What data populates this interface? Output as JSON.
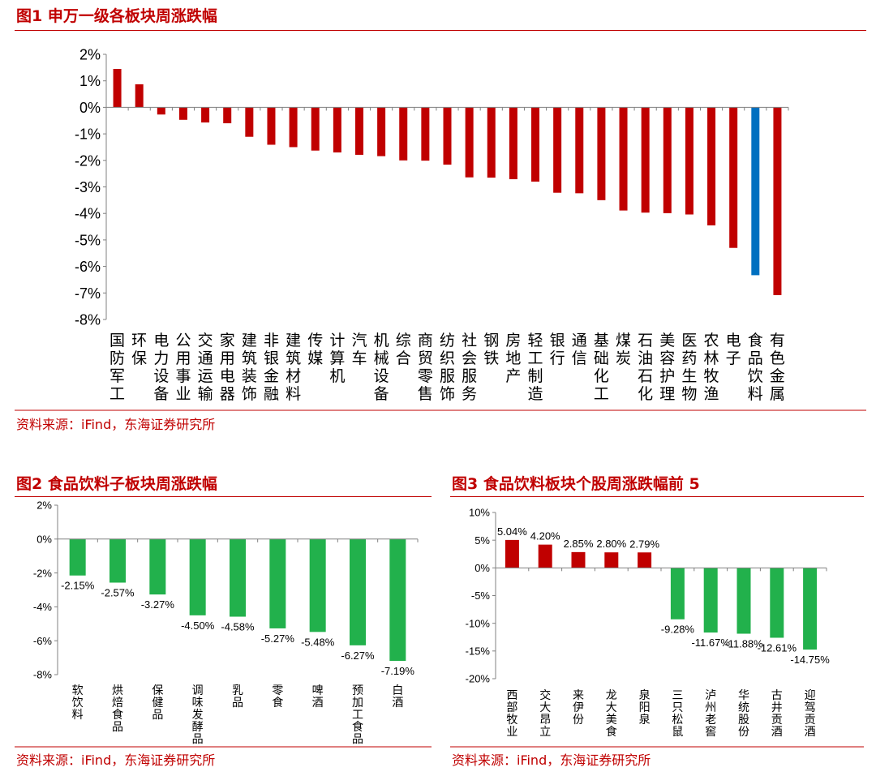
{
  "figures": [
    {
      "caption": "图1 申万一级各板块周涨跌幅",
      "source": "资料来源：iFind，东海证券研究所",
      "chart_data": {
        "type": "bar",
        "ylim": [
          -8,
          2
        ],
        "yticks": [
          "2%",
          "1%",
          "0%",
          "-1%",
          "-2%",
          "-3%",
          "-4%",
          "-5%",
          "-6%",
          "-7%",
          "-8%"
        ],
        "categories": [
          "国防军工",
          "环保",
          "电力设备",
          "公用事业",
          "交通运输",
          "家用电器",
          "建筑装饰",
          "非银金融",
          "建筑材料",
          "传媒",
          "计算机",
          "汽车",
          "机械设备",
          "综合",
          "商贸零售",
          "纺织服饰",
          "社会服务",
          "钢铁",
          "房地产",
          "轻工制造",
          "银行",
          "通信",
          "基础化工",
          "煤炭",
          "石油石化",
          "美容护理",
          "医药生物",
          "农林牧渔",
          "电子",
          "食品饮料",
          "有色金属"
        ],
        "values": [
          1.45,
          0.87,
          -0.27,
          -0.47,
          -0.57,
          -0.6,
          -1.11,
          -1.41,
          -1.5,
          -1.63,
          -1.7,
          -1.79,
          -1.84,
          -2.0,
          -2.01,
          -2.16,
          -2.64,
          -2.65,
          -2.71,
          -2.8,
          -3.22,
          -3.24,
          -3.5,
          -3.89,
          -3.97,
          -3.99,
          -4.04,
          -4.45,
          -5.3,
          -6.33,
          -7.08
        ],
        "highlight": "食品饮料",
        "bar_color": "#c00000",
        "highlight_color": "#0070c0",
        "grid": false
      }
    },
    {
      "caption": "图2 食品饮料子板块周涨跌幅",
      "source": "资料来源：iFind，东海证券研究所",
      "chart_data": {
        "type": "bar",
        "ylim": [
          -8,
          2
        ],
        "yticks": [
          "2%",
          "0%",
          "-2%",
          "-4%",
          "-6%",
          "-8%"
        ],
        "categories": [
          "软饮料",
          "烘焙食品",
          "保健品",
          "调味发酵品",
          "乳品",
          "零食",
          "啤酒",
          "预加工食品",
          "白酒"
        ],
        "values": [
          -2.15,
          -2.57,
          -3.27,
          -4.5,
          -4.58,
          -5.27,
          -5.48,
          -6.27,
          -7.19
        ],
        "data_labels": [
          "-2.15%",
          "-2.57%",
          "-3.27%",
          "-4.50%",
          "-4.58%",
          "-5.27%",
          "-5.48%",
          "-6.27%",
          "-7.19%"
        ],
        "bar_color": "#22b14c",
        "grid": false
      }
    },
    {
      "caption": "图3 食品饮料板块个股周涨跌幅前 5",
      "source": "资料来源：iFind，东海证券研究所",
      "chart_data": {
        "type": "bar",
        "ylim": [
          -20,
          10
        ],
        "yticks": [
          "10%",
          "5%",
          "0%",
          "-5%",
          "-10%",
          "-15%",
          "-20%"
        ],
        "categories": [
          "西部牧业",
          "交大昂立",
          "来伊份",
          "龙大美食",
          "泉阳泉",
          "三只松鼠",
          "泸州老窖",
          "华统股份",
          "古井贡酒",
          "迎驾贡酒"
        ],
        "values": [
          5.04,
          4.2,
          2.85,
          2.8,
          2.79,
          -9.28,
          -11.67,
          -11.88,
          -12.61,
          -14.75
        ],
        "data_labels": [
          "5.04%",
          "4.20%",
          "2.85%",
          "2.80%",
          "2.79%",
          "-9.28%",
          "-11.67%",
          "-11.88%",
          "-12.61%",
          "-14.75%"
        ],
        "positive_color": "#c00000",
        "negative_color": "#22b14c",
        "grid": false
      }
    }
  ]
}
